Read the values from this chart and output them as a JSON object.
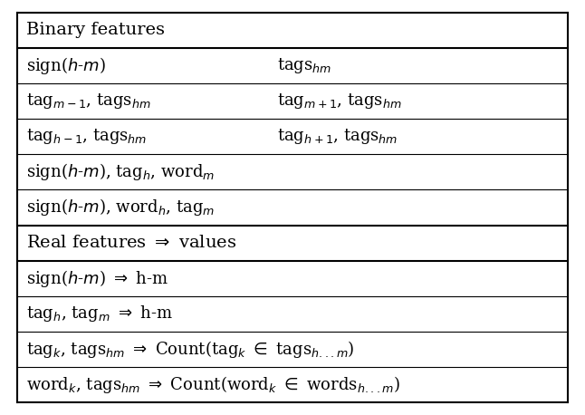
{
  "figsize": [
    6.46,
    4.58
  ],
  "dpi": 100,
  "bg_color": "#ffffff",
  "border_color": "#000000",
  "binary_header": "Binary features",
  "real_header": "Real features $\\Rightarrow$ values",
  "binary_rows": [
    [
      "sign($h$-$m$)",
      "tags$_{hm}$"
    ],
    [
      "tag$_{m-1}$, tags$_{hm}$",
      "tag$_{m+1}$, tags$_{hm}$"
    ],
    [
      "tag$_{h-1}$, tags$_{hm}$",
      "tag$_{h+1}$, tags$_{hm}$"
    ],
    [
      "sign($h$-$m$), tag$_h$, word$_m$",
      ""
    ],
    [
      "sign($h$-$m$), word$_h$, tag$_m$",
      ""
    ]
  ],
  "real_rows": [
    "sign($h$-$m$) $\\Rightarrow$ h-m",
    "tag$_h$, tag$_m$ $\\Rightarrow$ h-m",
    "tag$_k$, tags$_{hm}$ $\\Rightarrow$ Count(tag$_k$ $\\in$ tags$_{h...m}$)",
    "word$_k$, tags$_{hm}$ $\\Rightarrow$ Count(word$_k$ $\\in$ words$_{h...m}$)"
  ],
  "fontsize": 13,
  "header_fontsize": 14,
  "col_split": 0.45
}
